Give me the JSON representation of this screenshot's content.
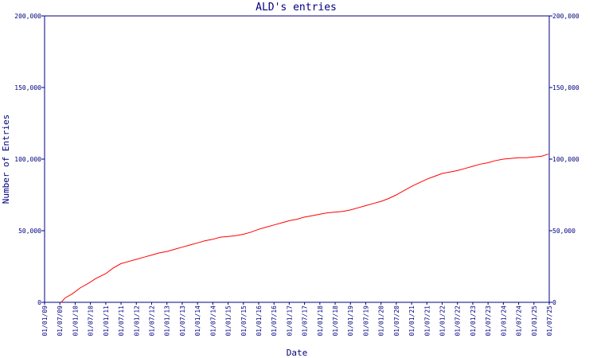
{
  "chart_data": {
    "type": "line",
    "title": "ALD's entries",
    "xlabel": "Date",
    "ylabel": "Number of Entries",
    "ylim": [
      0,
      200000
    ],
    "yticks": [
      0,
      50000,
      100000,
      150000,
      200000
    ],
    "ytick_labels": [
      "0",
      "50,000",
      "100,000",
      "150,000",
      "200,000"
    ],
    "right_axis": true,
    "grid": false,
    "xlim": [
      "2009-01-01",
      "2025-07-01"
    ],
    "xtick_labels": [
      "01/01/09",
      "01/07/09",
      "01/01/10",
      "01/07/10",
      "01/01/11",
      "01/07/11",
      "01/01/12",
      "01/07/12",
      "01/01/13",
      "01/07/13",
      "01/01/14",
      "01/07/14",
      "01/01/15",
      "01/07/15",
      "01/01/16",
      "01/07/16",
      "01/01/17",
      "01/07/17",
      "01/01/18",
      "01/07/18",
      "01/01/19",
      "01/07/19",
      "01/01/20",
      "01/07/20",
      "01/01/21",
      "01/07/21",
      "01/01/22",
      "01/07/22",
      "01/01/23",
      "01/07/23",
      "01/01/24",
      "01/07/24",
      "01/01/25",
      "01/07/25"
    ],
    "series": [
      {
        "color": "#ff0000",
        "x": [
          "2009-07-20",
          "2009-09-01",
          "2009-12-01",
          "2010-03-01",
          "2010-06-01",
          "2010-09-01",
          "2011-01-01",
          "2011-04-01",
          "2011-07-01",
          "2011-10-01",
          "2012-01-01",
          "2012-04-01",
          "2012-07-01",
          "2012-10-01",
          "2013-01-01",
          "2013-04-01",
          "2013-07-01",
          "2013-10-01",
          "2014-01-01",
          "2014-04-01",
          "2014-07-01",
          "2014-10-01",
          "2015-01-01",
          "2015-04-01",
          "2015-07-01",
          "2015-10-01",
          "2016-01-01",
          "2016-04-01",
          "2016-07-01",
          "2016-10-01",
          "2017-01-01",
          "2017-04-01",
          "2017-07-01",
          "2017-10-01",
          "2018-01-01",
          "2018-04-01",
          "2018-07-01",
          "2018-10-01",
          "2019-01-01",
          "2019-04-01",
          "2019-07-01",
          "2019-10-01",
          "2020-01-01",
          "2020-04-01",
          "2020-07-01",
          "2020-10-01",
          "2021-01-01",
          "2021-04-01",
          "2021-07-01",
          "2021-10-01",
          "2022-01-01",
          "2022-04-01",
          "2022-07-01",
          "2022-10-01",
          "2023-01-01",
          "2023-04-01",
          "2023-07-01",
          "2023-10-01",
          "2024-01-01",
          "2024-04-01",
          "2024-07-01",
          "2024-10-01",
          "2025-01-01",
          "2025-04-01",
          "2025-06-20"
        ],
        "values": [
          0,
          3000,
          6000,
          10000,
          13000,
          16500,
          20000,
          24000,
          27000,
          28500,
          30000,
          31500,
          33000,
          34500,
          35500,
          37000,
          38500,
          40000,
          41500,
          43000,
          44000,
          45500,
          46000,
          46500,
          47500,
          49000,
          51000,
          52500,
          54000,
          55500,
          57000,
          58000,
          59500,
          60500,
          61500,
          62500,
          63000,
          63500,
          64500,
          66000,
          67500,
          69000,
          70500,
          72500,
          75000,
          78000,
          81000,
          83500,
          86000,
          88000,
          90000,
          91000,
          92000,
          93500,
          95000,
          96500,
          97500,
          99000,
          100000,
          100500,
          101000,
          101000,
          101500,
          102000,
          103500
        ]
      }
    ]
  }
}
